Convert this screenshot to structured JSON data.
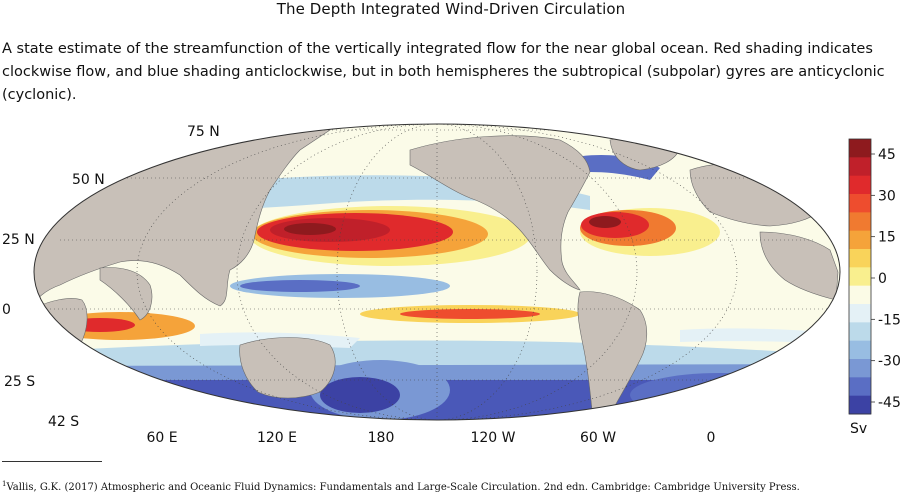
{
  "heading": "The Depth Integrated Wind-Driven Circulation",
  "caption": "A state estimate of the streamfunction of the vertically integrated flow for the near global ocean. Red shading indicates clockwise flow, and blue shading anticlockwise, but in both hemispheres the subtropical (subpolar) gyres are anticyclonic (cyclonic).",
  "map": {
    "lat_labels": [
      "75 N",
      "50 N",
      "25 N",
      "0",
      "25 S",
      "42 S"
    ],
    "lon_labels": [
      "60 E",
      "120 E",
      "180",
      "120 W",
      "60 W",
      "0"
    ]
  },
  "colorbar": {
    "unit": "Sv",
    "ticks": [
      "45",
      "30",
      "15",
      "0",
      "-15",
      "-30",
      "-45"
    ],
    "colors": [
      "#8e1a1e",
      "#c0202a",
      "#e02a2c",
      "#ee4d2e",
      "#f07a30",
      "#f5a33a",
      "#f9d35a",
      "#f9ef8e",
      "#fbfbe6",
      "#e4f1f6",
      "#bcdaea",
      "#98bde2",
      "#7a98d4",
      "#5a6ec4",
      "#3c42a4"
    ]
  },
  "footnote": {
    "marker": "1",
    "text": "Vallis, G.K. (2017) Atmospheric and Oceanic Fluid Dynamics: Fundamentals and Large-Scale Circulation. 2nd edn. Cambridge: Cambridge University Press."
  }
}
